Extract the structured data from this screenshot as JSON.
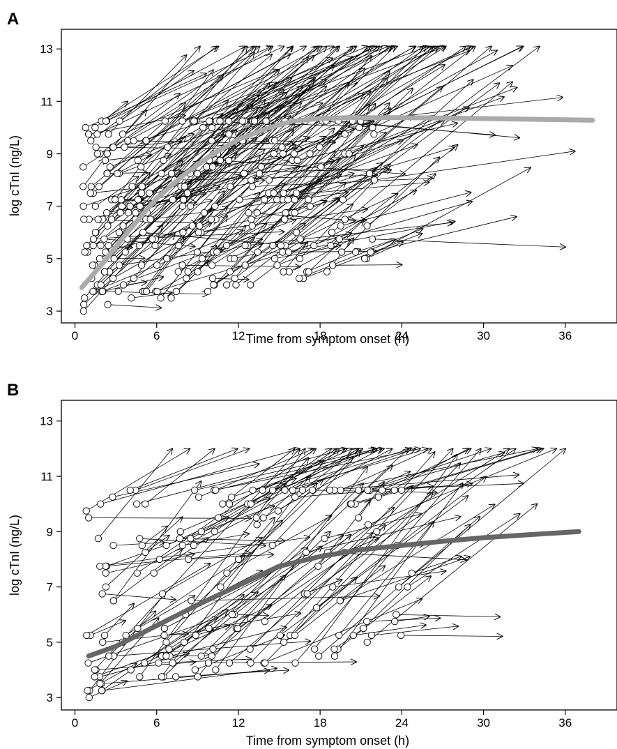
{
  "chart_data": [
    {
      "panel_label": "A",
      "type": "scatter",
      "xlabel": "Time from symptom onset (h)",
      "ylabel": "log cTnI (ng/L)",
      "xticks": [
        0,
        6,
        12,
        18,
        24,
        30,
        36
      ],
      "yticks": [
        3,
        5,
        7,
        9,
        11,
        13
      ],
      "xlim": [
        -1,
        39.8
      ],
      "ylim": [
        2.55,
        13.75
      ],
      "trend_color": "#aaaaaa",
      "arrow_series": {
        "seed": 7,
        "count": 300,
        "start_x_range": [
          0.6,
          22
        ],
        "start_y_range": [
          3.0,
          10.2
        ],
        "end_y_max": 13.1
      },
      "trend": {
        "x": [
          0.5,
          2,
          4,
          6,
          8,
          10,
          12,
          14,
          16,
          18,
          20,
          24,
          28,
          32,
          36,
          38
        ],
        "y": [
          3.9,
          4.8,
          6.1,
          7.3,
          8.2,
          8.95,
          9.55,
          9.95,
          10.25,
          10.35,
          10.38,
          10.38,
          10.36,
          10.33,
          10.3,
          10.28
        ]
      }
    },
    {
      "panel_label": "B",
      "type": "scatter",
      "xlabel": "Time from symptom onset (h)",
      "ylabel": "log cTnI (ng/L)",
      "xticks": [
        0,
        6,
        12,
        18,
        24,
        30,
        36
      ],
      "yticks": [
        3,
        5,
        7,
        9,
        11,
        13
      ],
      "xlim": [
        -1,
        39.8
      ],
      "ylim": [
        2.55,
        13.75
      ],
      "trend_color": "#666666",
      "arrow_series": {
        "seed": 13,
        "count": 170,
        "start_x_range": [
          0.8,
          25
        ],
        "start_y_range": [
          3.0,
          10.6
        ],
        "end_y_max": 12.0
      },
      "trend": {
        "x": [
          1,
          3,
          6,
          9,
          12,
          15,
          18,
          21,
          24,
          27,
          30,
          33,
          37
        ],
        "y": [
          4.5,
          4.85,
          5.6,
          6.35,
          7.05,
          7.75,
          8.1,
          8.35,
          8.5,
          8.65,
          8.78,
          8.88,
          9.0
        ]
      }
    }
  ]
}
